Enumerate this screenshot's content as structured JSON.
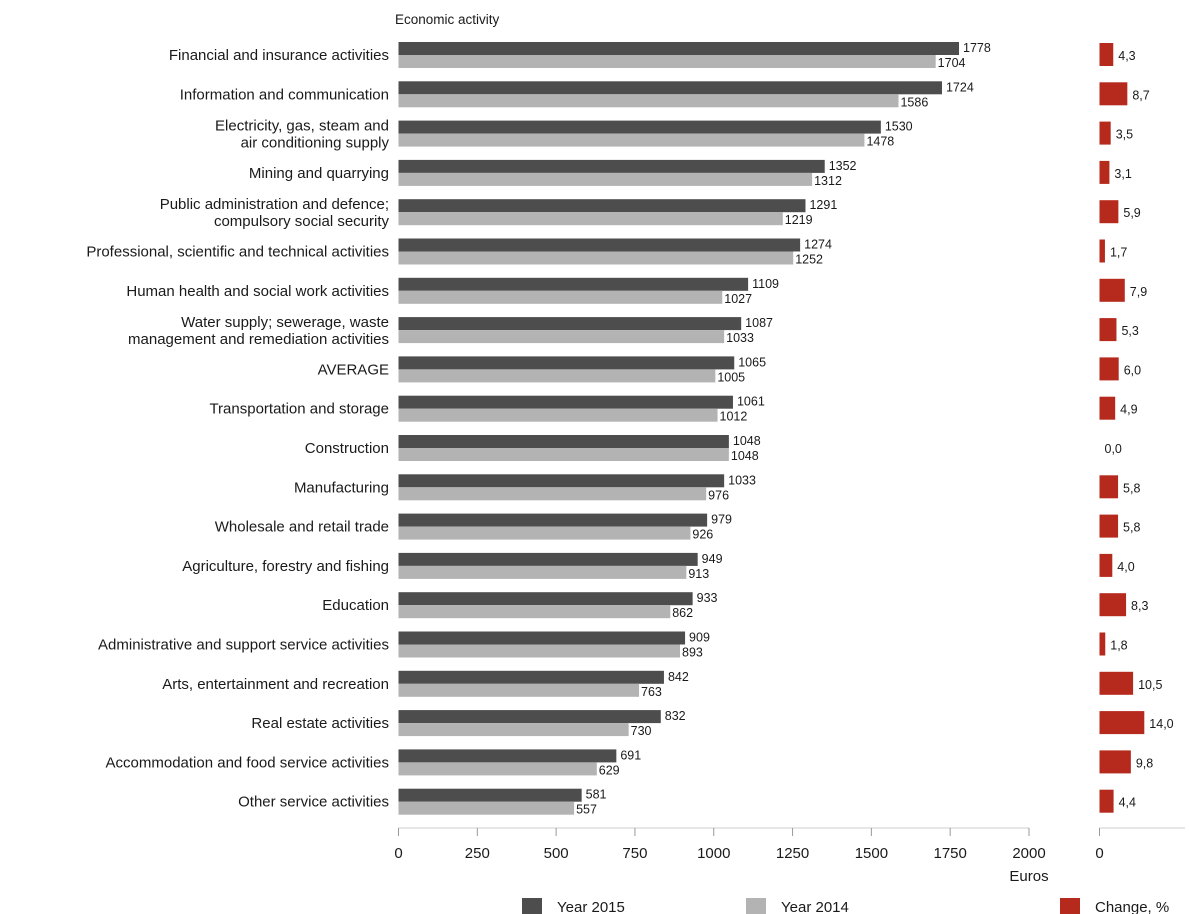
{
  "chart_data": {
    "type": "bar",
    "orientation": "horizontal",
    "title": "Economic activity",
    "xlabel": "Euros",
    "xlim": [
      0,
      2000
    ],
    "xticks": [
      0,
      250,
      500,
      750,
      1000,
      1250,
      1500,
      1750,
      2000
    ],
    "categories": [
      "Financial and insurance activities",
      "Information and communication",
      "Electricity, gas, steam and\nair conditioning supply",
      "Mining and quarrying",
      "Public administration and defence;\ncompulsory social security",
      "Professional, scientific and technical activities",
      "Human health and social work activities",
      "Water supply; sewerage, waste\nmanagement and remediation activities",
      "AVERAGE",
      "Transportation and storage",
      "Construction",
      "Manufacturing",
      "Wholesale and retail trade",
      "Agriculture, forestry and fishing",
      "Education",
      "Administrative and support service activities",
      "Arts, entertainment and recreation",
      "Real estate activities",
      "Accommodation and food service activities",
      "Other service activities"
    ],
    "series": [
      {
        "name": "Year 2015",
        "color": "#4d4d4d",
        "values": [
          1778,
          1724,
          1530,
          1352,
          1291,
          1274,
          1109,
          1087,
          1065,
          1061,
          1048,
          1033,
          979,
          949,
          933,
          909,
          842,
          832,
          691,
          581
        ]
      },
      {
        "name": "Year 2014",
        "color": "#b3b3b3",
        "values": [
          1704,
          1586,
          1478,
          1312,
          1219,
          1252,
          1027,
          1033,
          1005,
          1012,
          1048,
          976,
          926,
          913,
          862,
          893,
          763,
          730,
          629,
          557
        ]
      }
    ],
    "change_series": {
      "name": "Change, %",
      "color": "#b52a1c",
      "values": [
        "4,3",
        "8,7",
        "3,5",
        "3,1",
        "5,9",
        "1,7",
        "7,9",
        "5,3",
        "6,0",
        "4,9",
        "0,0",
        "5,8",
        "5,8",
        "4,0",
        "8,3",
        "1,8",
        "10,5",
        "14,0",
        "9,8",
        "4,4"
      ],
      "xticks": [
        "0"
      ]
    },
    "legend_position": "bottom",
    "grid": false
  }
}
